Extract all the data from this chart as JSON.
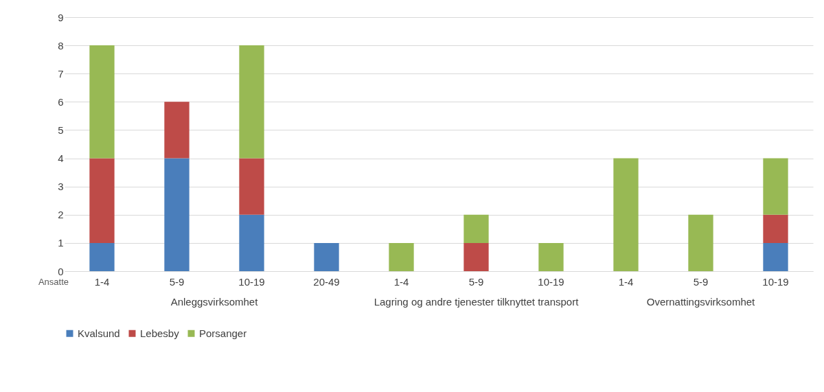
{
  "chart_data": {
    "type": "bar",
    "stacked": true,
    "categories": [
      "1-4",
      "5-9",
      "10-19",
      "20-49",
      "1-4",
      "5-9",
      "10-19",
      "1-4",
      "5-9",
      "10-19"
    ],
    "xlabel": "Ansatte",
    "annotations": [
      "Anleggsvirksomhet",
      "Lagring og andre tjenester tilknyttet transport",
      "Overnattingsvirksomhet"
    ],
    "series": [
      {
        "name": "Kvalsund",
        "color": "#4a7ebb",
        "values": [
          1,
          4,
          2,
          1,
          null,
          null,
          null,
          null,
          null,
          1
        ]
      },
      {
        "name": "Lebesby",
        "color": "#be4b48",
        "values": [
          3,
          2,
          2,
          null,
          null,
          1,
          null,
          null,
          null,
          1
        ]
      },
      {
        "name": "Porsanger",
        "color": "#98b954",
        "values": [
          4,
          null,
          4,
          null,
          1,
          1,
          1,
          4,
          2,
          2
        ]
      }
    ],
    "ylim": [
      0,
      9
    ],
    "yticks": [
      0,
      1,
      2,
      3,
      4,
      5,
      6,
      7,
      8,
      9
    ],
    "grid": "y",
    "legend": "bottom"
  }
}
